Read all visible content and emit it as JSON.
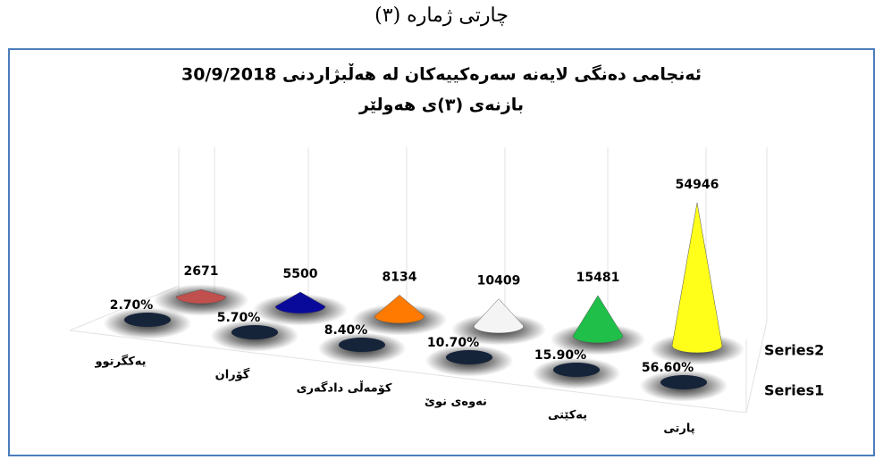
{
  "header": "چارتی ژمارە (٣)",
  "chart_data": {
    "type": "cone3d",
    "title": "ئەنجامی دەنگی لایەنە سەرەکییەکان لە هەڵبژاردنی 30/9/2018",
    "subtitle": "بازنەی (٣)ی هەولێر",
    "categories": [
      "يەكگرتوو",
      "گۆران",
      "كۆمەڵی دادگەری",
      "نەوەی نوێ",
      "یەکێتی",
      "پارتی"
    ],
    "series": [
      {
        "name": "Series1",
        "color": "#16243a",
        "values": [
          2.7,
          5.7,
          8.4,
          10.7,
          15.9,
          56.6
        ],
        "value_labels": [
          "2.70%",
          "5.70%",
          "8.40%",
          "10.70%",
          "15.90%",
          "56.60%"
        ]
      },
      {
        "name": "Series2",
        "colors": [
          "#c0504d",
          "#0a0a9a",
          "#ff7a00",
          "#f4f4f4",
          "#1fbf4a",
          "#ffff1a"
        ],
        "values": [
          2671,
          5500,
          8134,
          10409,
          15481,
          54946
        ]
      }
    ]
  }
}
